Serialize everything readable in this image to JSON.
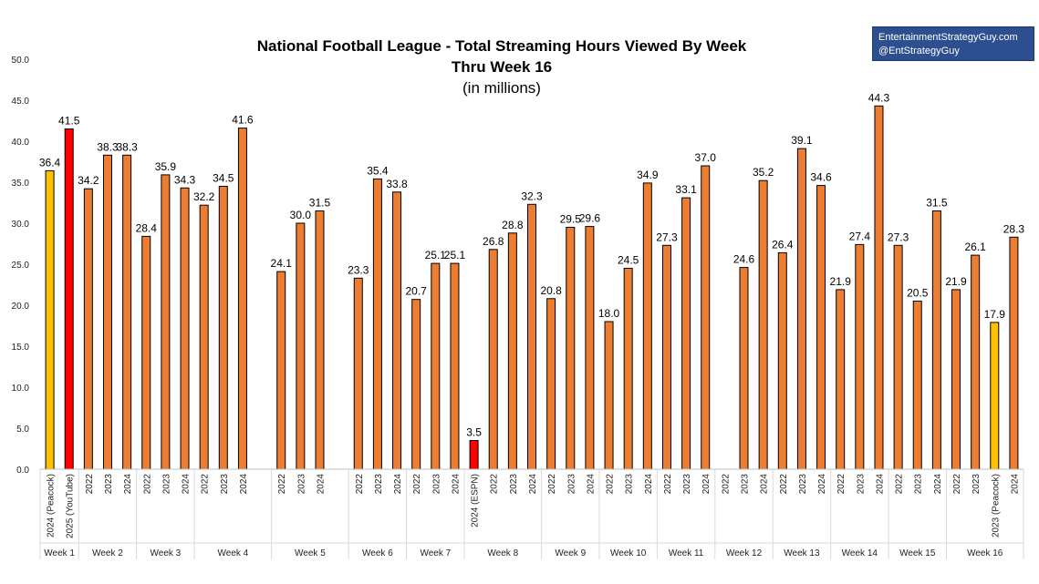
{
  "brand": {
    "line1": "EntertainmentStrategyGuy.com",
    "line2": "@EntStrategyGuy",
    "bg_color": "#2e4f8f"
  },
  "chart_data": {
    "type": "bar",
    "title": "National Football League - Total Streaming Hours Viewed By Week",
    "subtitle": "Thru Week 16",
    "units_note": "(in millions)",
    "xlabel": "",
    "ylabel": "",
    "ylim": [
      0,
      50
    ],
    "yticks": [
      "0.0",
      "5.0",
      "10.0",
      "15.0",
      "20.0",
      "25.0",
      "30.0",
      "35.0",
      "40.0",
      "45.0",
      "50.0"
    ],
    "grid": false,
    "colors": {
      "default": "#ed7d31",
      "peacock": "#ffc000",
      "special": "#ff0000",
      "outline": "#000000"
    },
    "slots": [
      {
        "label": "2024 (Peacock)",
        "value": 36.4,
        "value_label": "36.4",
        "color": "peacock"
      },
      {
        "label": "2025 (YouTube)",
        "value": 41.5,
        "value_label": "41.5",
        "color": "special"
      },
      {
        "label": "2022",
        "value": 34.2,
        "value_label": "34.2",
        "color": "default"
      },
      {
        "label": "2023",
        "value": 38.3,
        "value_label": "38.3",
        "color": "default"
      },
      {
        "label": "2024",
        "value": 38.3,
        "value_label": "38.3",
        "color": "default"
      },
      {
        "label": "2022",
        "value": 28.4,
        "value_label": "28.4",
        "color": "default"
      },
      {
        "label": "2023",
        "value": 35.9,
        "value_label": "35.9",
        "color": "default"
      },
      {
        "label": "2024",
        "value": 34.3,
        "value_label": "34.3",
        "color": "default"
      },
      {
        "label": "2022",
        "value": 32.2,
        "value_label": "32.2",
        "color": "default"
      },
      {
        "label": "2023",
        "value": 34.5,
        "value_label": "34.5",
        "color": "default"
      },
      {
        "label": "2024",
        "value": 41.6,
        "value_label": "41.6",
        "color": "default"
      },
      {
        "label": "",
        "value": null,
        "value_label": "",
        "color": "default"
      },
      {
        "label": "2022",
        "value": 24.1,
        "value_label": "24.1",
        "color": "default"
      },
      {
        "label": "2023",
        "value": 30.0,
        "value_label": "30.0",
        "color": "default"
      },
      {
        "label": "2024",
        "value": 31.5,
        "value_label": "31.5",
        "color": "default"
      },
      {
        "label": "",
        "value": null,
        "value_label": "",
        "color": "default"
      },
      {
        "label": "2022",
        "value": 23.3,
        "value_label": "23.3",
        "color": "default"
      },
      {
        "label": "2023",
        "value": 35.4,
        "value_label": "35.4",
        "color": "default"
      },
      {
        "label": "2024",
        "value": 33.8,
        "value_label": "33.8",
        "color": "default"
      },
      {
        "label": "2022",
        "value": 20.7,
        "value_label": "20.7",
        "color": "default"
      },
      {
        "label": "2023",
        "value": 25.1,
        "value_label": "25.1",
        "color": "default"
      },
      {
        "label": "2024",
        "value": 25.1,
        "value_label": "25.1",
        "color": "default"
      },
      {
        "label": "2024 (ESPN)",
        "value": 3.5,
        "value_label": "3.5",
        "color": "special"
      },
      {
        "label": "2022",
        "value": 26.8,
        "value_label": "26.8",
        "color": "default"
      },
      {
        "label": "2023",
        "value": 28.8,
        "value_label": "28.8",
        "color": "default"
      },
      {
        "label": "2024",
        "value": 32.3,
        "value_label": "32.3",
        "color": "default"
      },
      {
        "label": "2022",
        "value": 20.8,
        "value_label": "20.8",
        "color": "default"
      },
      {
        "label": "2023",
        "value": 29.5,
        "value_label": "29.5",
        "color": "default"
      },
      {
        "label": "2024",
        "value": 29.6,
        "value_label": "29.6",
        "color": "default"
      },
      {
        "label": "2022",
        "value": 18.0,
        "value_label": "18.0",
        "color": "default"
      },
      {
        "label": "2023",
        "value": 24.5,
        "value_label": "24.5",
        "color": "default"
      },
      {
        "label": "2024",
        "value": 34.9,
        "value_label": "34.9",
        "color": "default"
      },
      {
        "label": "2022",
        "value": 27.3,
        "value_label": "27.3",
        "color": "default"
      },
      {
        "label": "2023",
        "value": 33.1,
        "value_label": "33.1",
        "color": "default"
      },
      {
        "label": "2024",
        "value": 37.0,
        "value_label": "37.0",
        "color": "default"
      },
      {
        "label": "2022",
        "value": null,
        "value_label": "",
        "color": "default"
      },
      {
        "label": "2023",
        "value": 24.6,
        "value_label": "24.6",
        "color": "default"
      },
      {
        "label": "2024",
        "value": 35.2,
        "value_label": "35.2",
        "color": "default"
      },
      {
        "label": "2022",
        "value": 26.4,
        "value_label": "26.4",
        "color": "default"
      },
      {
        "label": "2023",
        "value": 39.1,
        "value_label": "39.1",
        "color": "default"
      },
      {
        "label": "2024",
        "value": 34.6,
        "value_label": "34.6",
        "color": "default"
      },
      {
        "label": "2022",
        "value": 21.9,
        "value_label": "21.9",
        "color": "default"
      },
      {
        "label": "2023",
        "value": 27.4,
        "value_label": "27.4",
        "color": "default"
      },
      {
        "label": "2024",
        "value": 44.3,
        "value_label": "44.3",
        "color": "default"
      },
      {
        "label": "2022",
        "value": 27.3,
        "value_label": "27.3",
        "color": "default"
      },
      {
        "label": "2023",
        "value": 20.5,
        "value_label": "20.5",
        "color": "default"
      },
      {
        "label": "2024",
        "value": 31.5,
        "value_label": "31.5",
        "color": "default"
      },
      {
        "label": "2022",
        "value": 21.9,
        "value_label": "21.9",
        "color": "default"
      },
      {
        "label": "2023",
        "value": 26.1,
        "value_label": "26.1",
        "color": "default"
      },
      {
        "label": "2023 (Peacock)",
        "value": 17.9,
        "value_label": "17.9",
        "color": "peacock"
      },
      {
        "label": "2024",
        "value": 28.3,
        "value_label": "28.3",
        "color": "default"
      }
    ],
    "groups": [
      {
        "label": "Week 1",
        "start": 0,
        "end": 1
      },
      {
        "label": "Week 2",
        "start": 2,
        "end": 4
      },
      {
        "label": "Week 3",
        "start": 5,
        "end": 7
      },
      {
        "label": "Week 4",
        "start": 8,
        "end": 11
      },
      {
        "label": "Week 5",
        "start": 12,
        "end": 15
      },
      {
        "label": "Week 6",
        "start": 16,
        "end": 18
      },
      {
        "label": "Week 7",
        "start": 19,
        "end": 21
      },
      {
        "label": "Week 8",
        "start": 22,
        "end": 25
      },
      {
        "label": "Week 9",
        "start": 26,
        "end": 28
      },
      {
        "label": "Week 10",
        "start": 29,
        "end": 31
      },
      {
        "label": "Week 11",
        "start": 32,
        "end": 34
      },
      {
        "label": "Week 12",
        "start": 35,
        "end": 37
      },
      {
        "label": "Week 13",
        "start": 38,
        "end": 40
      },
      {
        "label": "Week 14",
        "start": 41,
        "end": 43
      },
      {
        "label": "Week 15",
        "start": 44,
        "end": 46
      },
      {
        "label": "Week 16",
        "start": 47,
        "end": 50
      }
    ]
  }
}
